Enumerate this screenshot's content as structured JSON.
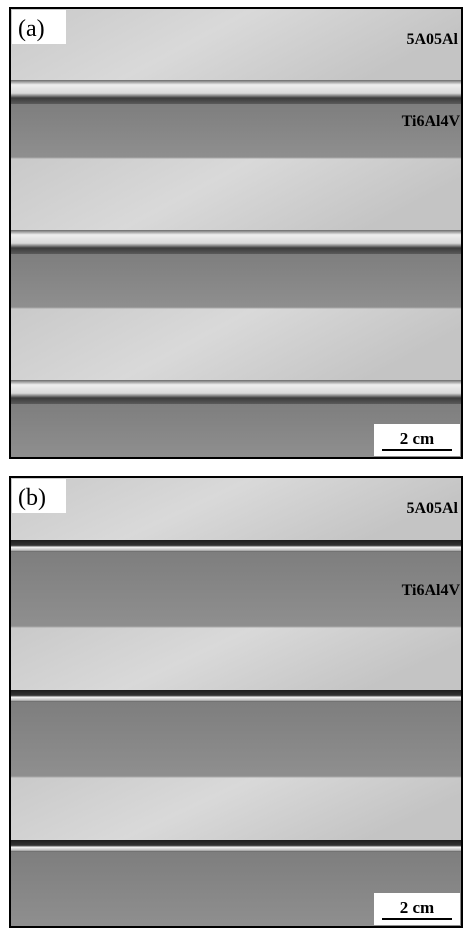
{
  "panels": [
    {
      "label": "(a)",
      "top_material": "5A05Al",
      "bottom_material": "Ti6Al4V",
      "scale_bar": "2 cm"
    },
    {
      "label": "(b)",
      "top_material": "5A05Al",
      "bottom_material": "Ti6Al4V",
      "scale_bar": "2 cm"
    }
  ]
}
